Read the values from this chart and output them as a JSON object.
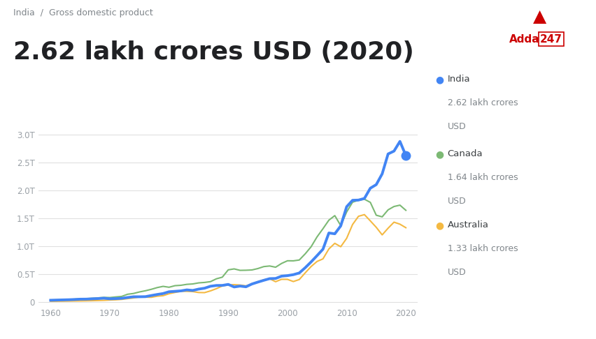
{
  "title": "2.62 lakh crores USD (2020)",
  "subtitle": "India  /  Gross domestic product",
  "background_color": "#ffffff",
  "chart_bg_color": "#ffffff",
  "years": [
    1960,
    1961,
    1962,
    1963,
    1964,
    1965,
    1966,
    1967,
    1968,
    1969,
    1970,
    1971,
    1972,
    1973,
    1974,
    1975,
    1976,
    1977,
    1978,
    1979,
    1980,
    1981,
    1982,
    1983,
    1984,
    1985,
    1986,
    1987,
    1988,
    1989,
    1990,
    1991,
    1992,
    1993,
    1994,
    1995,
    1996,
    1997,
    1998,
    1999,
    2000,
    2001,
    2002,
    2003,
    2004,
    2005,
    2006,
    2007,
    2008,
    2009,
    2010,
    2011,
    2012,
    2013,
    2014,
    2015,
    2016,
    2017,
    2018,
    2019,
    2020
  ],
  "india": [
    0.037,
    0.04,
    0.043,
    0.046,
    0.05,
    0.056,
    0.057,
    0.062,
    0.067,
    0.073,
    0.063,
    0.066,
    0.071,
    0.086,
    0.099,
    0.099,
    0.101,
    0.121,
    0.14,
    0.157,
    0.189,
    0.196,
    0.204,
    0.222,
    0.212,
    0.236,
    0.252,
    0.287,
    0.301,
    0.302,
    0.32,
    0.274,
    0.29,
    0.277,
    0.327,
    0.361,
    0.393,
    0.423,
    0.426,
    0.467,
    0.477,
    0.494,
    0.524,
    0.618,
    0.722,
    0.834,
    0.949,
    1.239,
    1.224,
    1.365,
    1.708,
    1.823,
    1.827,
    1.856,
    2.039,
    2.103,
    2.295,
    2.651,
    2.702,
    2.875,
    2.623
  ],
  "canada": [
    0.041,
    0.043,
    0.046,
    0.05,
    0.056,
    0.061,
    0.065,
    0.072,
    0.079,
    0.088,
    0.085,
    0.096,
    0.105,
    0.144,
    0.158,
    0.185,
    0.206,
    0.232,
    0.263,
    0.285,
    0.269,
    0.297,
    0.304,
    0.321,
    0.328,
    0.347,
    0.355,
    0.369,
    0.42,
    0.449,
    0.58,
    0.597,
    0.571,
    0.573,
    0.578,
    0.603,
    0.638,
    0.649,
    0.627,
    0.694,
    0.742,
    0.741,
    0.756,
    0.866,
    0.993,
    1.169,
    1.315,
    1.468,
    1.549,
    1.371,
    1.614,
    1.789,
    1.824,
    1.842,
    1.786,
    1.556,
    1.527,
    1.652,
    1.712,
    1.736,
    1.644
  ],
  "australia": [
    0.018,
    0.019,
    0.02,
    0.022,
    0.024,
    0.025,
    0.027,
    0.029,
    0.032,
    0.035,
    0.041,
    0.045,
    0.052,
    0.066,
    0.078,
    0.095,
    0.092,
    0.089,
    0.109,
    0.118,
    0.153,
    0.176,
    0.197,
    0.196,
    0.192,
    0.175,
    0.173,
    0.204,
    0.244,
    0.292,
    0.31,
    0.316,
    0.308,
    0.294,
    0.33,
    0.367,
    0.402,
    0.421,
    0.368,
    0.411,
    0.41,
    0.371,
    0.407,
    0.526,
    0.64,
    0.73,
    0.776,
    0.954,
    1.054,
    0.993,
    1.143,
    1.39,
    1.537,
    1.567,
    1.455,
    1.34,
    1.205,
    1.324,
    1.432,
    1.396,
    1.333
  ],
  "india_color": "#4285f4",
  "canada_color": "#7cb974",
  "australia_color": "#f4b942",
  "yticks": [
    0,
    0.5,
    1.0,
    1.5,
    2.0,
    2.5,
    3.0
  ],
  "ytick_labels": [
    "0",
    "0.5T",
    "1.0T",
    "1.5T",
    "2.0T",
    "2.5T",
    "3.0T"
  ],
  "xticks": [
    1960,
    1970,
    1980,
    1990,
    2000,
    2010,
    2020
  ],
  "ylim": [
    -0.05,
    3.1
  ],
  "xlim": [
    1958,
    2022
  ],
  "legend_entries": [
    {
      "label": "India",
      "sublabel": "2.62 lakh crores\nUSD",
      "color": "#4285f4"
    },
    {
      "label": "Canada",
      "sublabel": "1.64 lakh crores\nUSD",
      "color": "#7cb974"
    },
    {
      "label": "Australia",
      "sublabel": "1.33 lakh crores\nUSD",
      "color": "#f4b942"
    }
  ],
  "grid_color": "#e0e0e0",
  "tick_color": "#9aa0a6",
  "title_color": "#202124",
  "subtitle_color": "#80868b",
  "legend_label_color": "#3c4043",
  "legend_sub_color": "#80868b"
}
